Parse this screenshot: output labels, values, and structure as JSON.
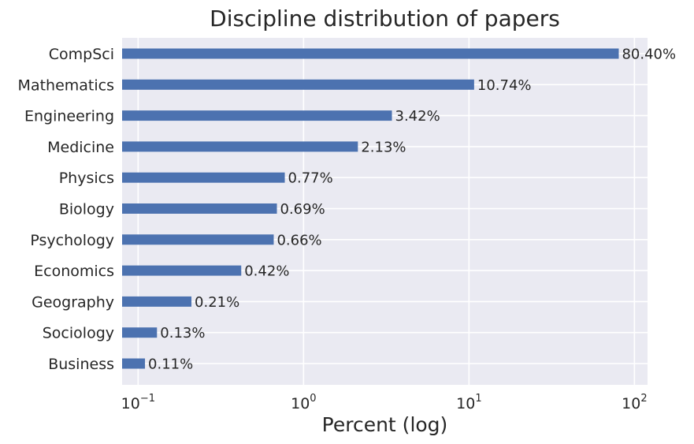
{
  "chart_data": {
    "type": "bar",
    "orientation": "horizontal",
    "title": "Discipline distribution of papers",
    "xlabel": "Percent (log)",
    "ylabel": "",
    "xscale": "log",
    "xlim": [
      0.08,
      120
    ],
    "grid": true,
    "categories": [
      "CompSci",
      "Mathematics",
      "Engineering",
      "Medicine",
      "Physics",
      "Biology",
      "Psychology",
      "Economics",
      "Geography",
      "Sociology",
      "Business"
    ],
    "values": [
      80.4,
      10.74,
      3.42,
      2.13,
      0.77,
      0.69,
      0.66,
      0.42,
      0.21,
      0.13,
      0.11
    ],
    "value_labels": [
      "80.40%",
      "10.74%",
      "3.42%",
      "2.13%",
      "0.77%",
      "0.69%",
      "0.66%",
      "0.42%",
      "0.21%",
      "0.13%",
      "0.11%"
    ],
    "x_ticks": [
      {
        "value": 0.1,
        "base": "10",
        "exp": "−1"
      },
      {
        "value": 1,
        "base": "10",
        "exp": "0"
      },
      {
        "value": 10,
        "base": "10",
        "exp": "1"
      },
      {
        "value": 100,
        "base": "10",
        "exp": "2"
      }
    ],
    "colors": {
      "bar": "#4c72b0",
      "background": "#eaeaf2",
      "grid": "#ffffff",
      "text": "#262626"
    }
  }
}
